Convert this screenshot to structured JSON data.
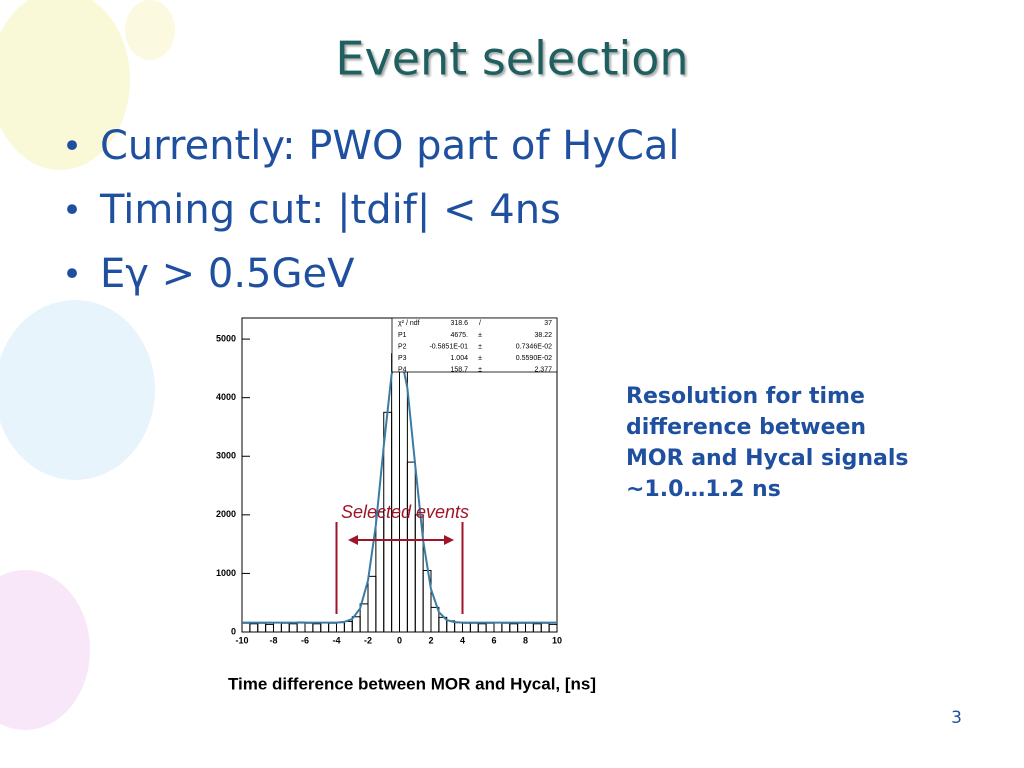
{
  "title": "Event selection",
  "bullets": [
    "Currently: PWO part of HyCal",
    "Timing cut: |tdif| < 4ns",
    "Eγ > 0.5GeV"
  ],
  "side_note": [
    "Resolution for time",
    "difference between",
    "MOR and Hycal signals",
    "~1.0…1.2 ns"
  ],
  "page_number": "3",
  "chart_data": {
    "type": "histogram",
    "x_label": "Time difference between MOR and Hycal, [ns]",
    "bins": [
      -10,
      -9.5,
      -9,
      -8.5,
      -8,
      -7.5,
      -7,
      -6.5,
      -6,
      -5.5,
      -5,
      -4.5,
      -4,
      -3.5,
      -3,
      -2.5,
      -2,
      -1.5,
      -1,
      -0.5,
      0,
      0.5,
      1,
      1.5,
      2,
      2.5,
      3,
      3.5,
      4,
      4.5,
      5,
      5.5,
      6,
      6.5,
      7,
      7.5,
      8,
      8.5,
      9,
      9.5,
      10
    ],
    "counts": [
      150,
      140,
      150,
      130,
      160,
      150,
      140,
      170,
      150,
      140,
      160,
      150,
      160,
      180,
      260,
      480,
      950,
      2050,
      3750,
      4750,
      4600,
      2900,
      2000,
      1050,
      420,
      250,
      190,
      160,
      150,
      150,
      140,
      150,
      160,
      150,
      140,
      150,
      150,
      140,
      150,
      130
    ],
    "color": "#000000",
    "fit": {
      "color": "#3a7ca5",
      "x": [
        -10,
        -6,
        -4,
        -3.5,
        -3,
        -2.5,
        -2,
        -1.5,
        -1,
        -0.5,
        0,
        0.5,
        1,
        1.5,
        2,
        2.5,
        3,
        3.5,
        4,
        6,
        10
      ],
      "values": [
        159,
        159,
        160,
        172,
        223,
        402,
        879,
        1827,
        3171,
        4403,
        4826,
        4164,
        2841,
        1561,
        730,
        341,
        204,
        168,
        160,
        159,
        159
      ]
    },
    "stats": {
      "header": [
        "χ² / ndf",
        "318.6",
        "/",
        "37"
      ],
      "rows": [
        [
          "P1",
          "4675.",
          "±",
          "38.22"
        ],
        [
          "P2",
          "-0.5851E-01",
          "±",
          "0.7346E-02"
        ],
        [
          "P3",
          "1.004",
          "±",
          "0.5590E-02"
        ],
        [
          "P4",
          "158.7",
          "±",
          "2.377"
        ]
      ]
    },
    "annotation": "Selected events",
    "cut_x": [
      -4,
      4
    ],
    "cut_color": "#a0142a",
    "xlim": [
      -10,
      10
    ],
    "xticks": [
      -10,
      -8,
      -6,
      -4,
      -2,
      0,
      2,
      4,
      6,
      8,
      10
    ],
    "ylim": [
      0,
      5360
    ],
    "yticks": [
      0,
      1000,
      2000,
      3000,
      4000,
      5000
    ]
  }
}
